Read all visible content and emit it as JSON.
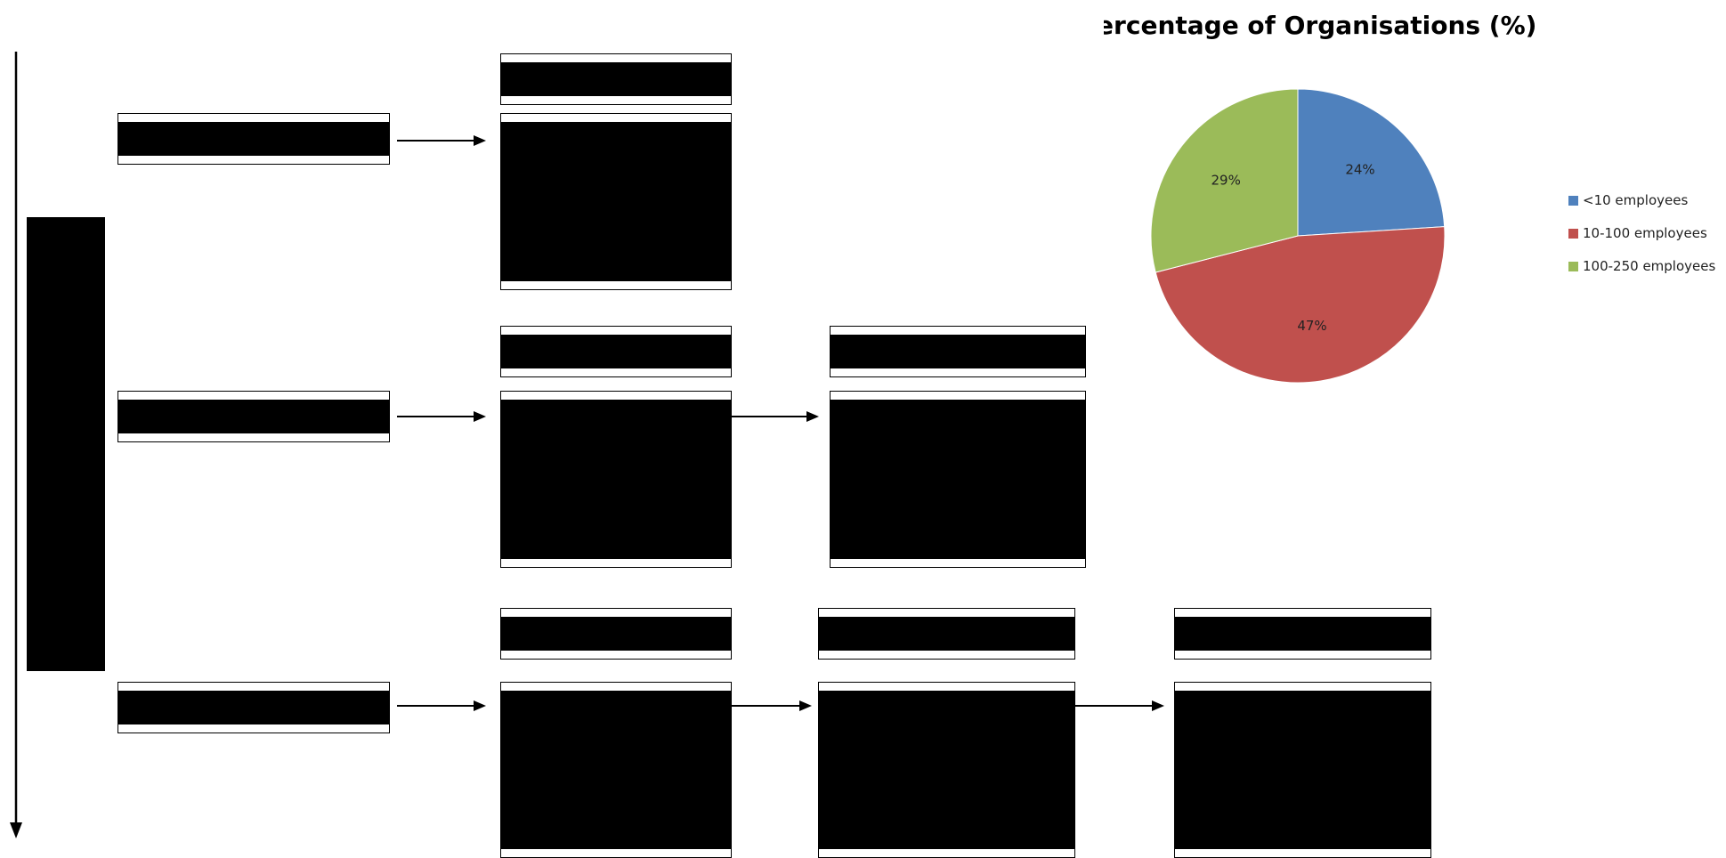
{
  "colors": {
    "redaction": "#000000",
    "box_border": "#000000",
    "arrow": "#000000",
    "slice_small": "#4f81bd",
    "slice_medium": "#c0504d",
    "slice_large": "#9bbb59"
  },
  "chart_data": {
    "type": "pie",
    "title": "Percentage of Organisations (%)",
    "categories": [
      "<10 employees",
      "10-100 employees",
      "100-250 employees"
    ],
    "values": [
      24,
      47,
      29
    ],
    "labels": [
      "24%",
      "47%",
      "29%"
    ],
    "colors": [
      "#4f81bd",
      "#c0504d",
      "#9bbb59"
    ],
    "legend_position": "right"
  }
}
